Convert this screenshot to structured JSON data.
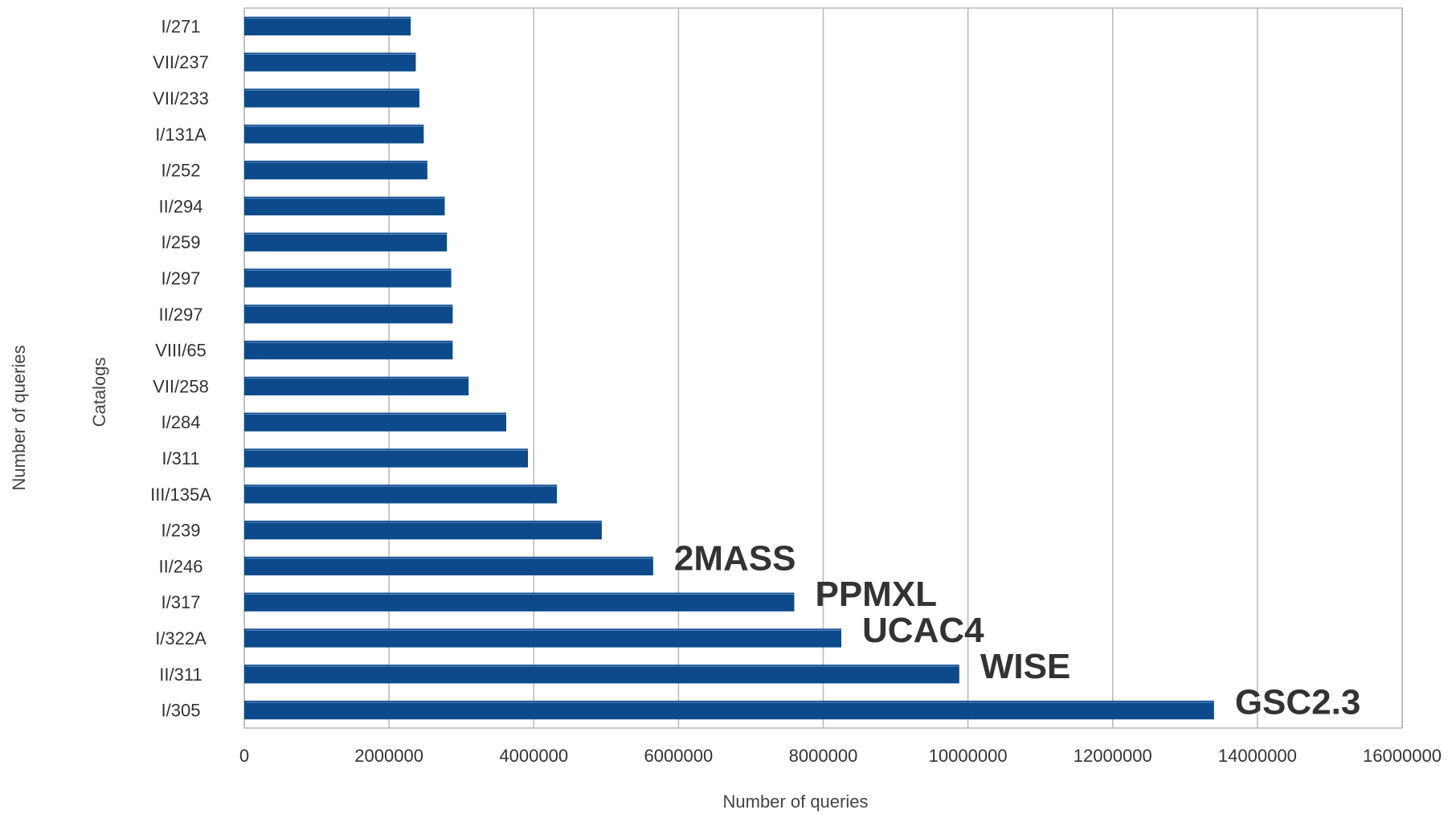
{
  "chart_data": {
    "type": "bar",
    "orientation": "horizontal",
    "title": "",
    "xlabel": "Number of queries",
    "ylabel": "Catalogs",
    "outer_ylabel": "Number of queries",
    "xlim": [
      0,
      16000000
    ],
    "x_ticks": [
      0,
      2000000,
      4000000,
      6000000,
      8000000,
      10000000,
      12000000,
      14000000,
      16000000
    ],
    "x_tick_labels": [
      "0",
      "2000000",
      "4000000",
      "6000000",
      "8000000",
      "10000000",
      "12000000",
      "14000000",
      "16000000"
    ],
    "grid": "vertical",
    "bar_color": "#0d4a8b",
    "categories": [
      "I/271",
      "VII/237",
      "VII/233",
      "I/131A",
      "I/252",
      "II/294",
      "I/259",
      "I/297",
      "II/297",
      "VIII/65",
      "VII/258",
      "I/284",
      "I/311",
      "III/135A",
      "I/239",
      "II/246",
      "I/317",
      "I/322A",
      "II/311",
      "I/305"
    ],
    "values": [
      2300000,
      2370000,
      2420000,
      2480000,
      2530000,
      2770000,
      2800000,
      2860000,
      2880000,
      2880000,
      3100000,
      3620000,
      3920000,
      4320000,
      4940000,
      5650000,
      7600000,
      8250000,
      9880000,
      13400000
    ],
    "annotations": [
      {
        "category": "II/246",
        "text": "2MASS"
      },
      {
        "category": "I/317",
        "text": "PPMXL"
      },
      {
        "category": "I/322A",
        "text": "UCAC4"
      },
      {
        "category": "II/311",
        "text": "WISE"
      },
      {
        "category": "I/305",
        "text": "GSC2.3"
      }
    ]
  }
}
